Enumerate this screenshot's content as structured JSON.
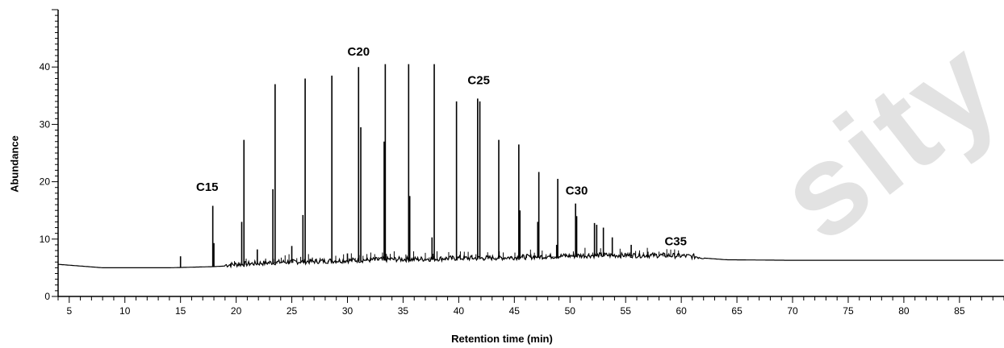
{
  "chart_data": {
    "type": "line",
    "xlabel": "Retention time (min)",
    "ylabel": "Abundance",
    "xlim": [
      4,
      89
    ],
    "ylim": [
      0,
      50
    ],
    "x_ticks": [
      5,
      10,
      15,
      20,
      25,
      30,
      35,
      40,
      45,
      50,
      55,
      60,
      65,
      70,
      75,
      80,
      85
    ],
    "y_ticks": [
      0,
      10,
      20,
      30,
      40
    ],
    "baseline": [
      [
        4,
        5.6
      ],
      [
        6,
        5.3
      ],
      [
        8,
        5.0
      ],
      [
        10,
        5.0
      ],
      [
        12,
        5.0
      ],
      [
        14,
        5.0
      ],
      [
        16,
        5.1
      ],
      [
        18,
        5.2
      ],
      [
        20,
        5.4
      ],
      [
        22,
        5.6
      ],
      [
        24,
        5.8
      ],
      [
        26,
        5.9
      ],
      [
        28,
        6.0
      ],
      [
        30,
        6.1
      ],
      [
        32,
        6.2
      ],
      [
        34,
        6.3
      ],
      [
        36,
        6.3
      ],
      [
        38,
        6.4
      ],
      [
        40,
        6.5
      ],
      [
        42,
        6.5
      ],
      [
        44,
        6.6
      ],
      [
        46,
        6.7
      ],
      [
        48,
        6.8
      ],
      [
        50,
        6.9
      ],
      [
        52,
        7.0
      ],
      [
        54,
        7.0
      ],
      [
        56,
        7.0
      ],
      [
        58,
        7.0
      ],
      [
        60,
        6.9
      ],
      [
        62,
        6.7
      ],
      [
        64,
        6.4
      ],
      [
        70,
        6.3
      ],
      [
        80,
        6.3
      ],
      [
        89,
        6.3
      ]
    ],
    "peaks": [
      {
        "x": 15.0,
        "y": 7.0
      },
      {
        "x": 17.9,
        "y": 15.8
      },
      {
        "x": 18.0,
        "y": 9.3
      },
      {
        "x": 20.5,
        "y": 13.0
      },
      {
        "x": 20.7,
        "y": 27.3
      },
      {
        "x": 21.9,
        "y": 8.2
      },
      {
        "x": 23.3,
        "y": 18.7
      },
      {
        "x": 23.5,
        "y": 37.0
      },
      {
        "x": 25.0,
        "y": 8.8
      },
      {
        "x": 26.0,
        "y": 14.2
      },
      {
        "x": 26.2,
        "y": 38.0
      },
      {
        "x": 28.6,
        "y": 38.5
      },
      {
        "x": 30.0,
        "y": 7.5
      },
      {
        "x": 31.0,
        "y": 40.0
      },
      {
        "x": 31.2,
        "y": 29.5
      },
      {
        "x": 33.4,
        "y": 40.5
      },
      {
        "x": 33.3,
        "y": 27.0
      },
      {
        "x": 35.5,
        "y": 40.5
      },
      {
        "x": 35.6,
        "y": 17.5
      },
      {
        "x": 37.6,
        "y": 10.3
      },
      {
        "x": 37.8,
        "y": 40.5
      },
      {
        "x": 39.8,
        "y": 34.0
      },
      {
        "x": 41.7,
        "y": 34.5
      },
      {
        "x": 41.9,
        "y": 34.0
      },
      {
        "x": 43.6,
        "y": 27.3
      },
      {
        "x": 45.4,
        "y": 26.5
      },
      {
        "x": 45.5,
        "y": 15.0
      },
      {
        "x": 47.2,
        "y": 21.7
      },
      {
        "x": 47.1,
        "y": 13.0
      },
      {
        "x": 48.9,
        "y": 20.5
      },
      {
        "x": 48.8,
        "y": 9.0
      },
      {
        "x": 50.5,
        "y": 16.2
      },
      {
        "x": 50.6,
        "y": 14.0
      },
      {
        "x": 52.2,
        "y": 12.8
      },
      {
        "x": 52.4,
        "y": 12.5
      },
      {
        "x": 53.0,
        "y": 12.0
      },
      {
        "x": 53.8,
        "y": 10.3
      },
      {
        "x": 55.5,
        "y": 9.0
      },
      {
        "x": 57.0,
        "y": 7.8
      },
      {
        "x": 58.5,
        "y": 7.5
      }
    ],
    "annotations": [
      {
        "text": "C15",
        "x": 17.4,
        "y": 18.4
      },
      {
        "text": "C20",
        "x": 31.0,
        "y": 42.0
      },
      {
        "text": "C25",
        "x": 41.8,
        "y": 37.0
      },
      {
        "text": "C30",
        "x": 50.6,
        "y": 17.8
      },
      {
        "text": "C35",
        "x": 59.5,
        "y": 8.9
      }
    ],
    "colors": {
      "trace": "#000000",
      "axis": "#000000"
    }
  },
  "watermark": "sity"
}
